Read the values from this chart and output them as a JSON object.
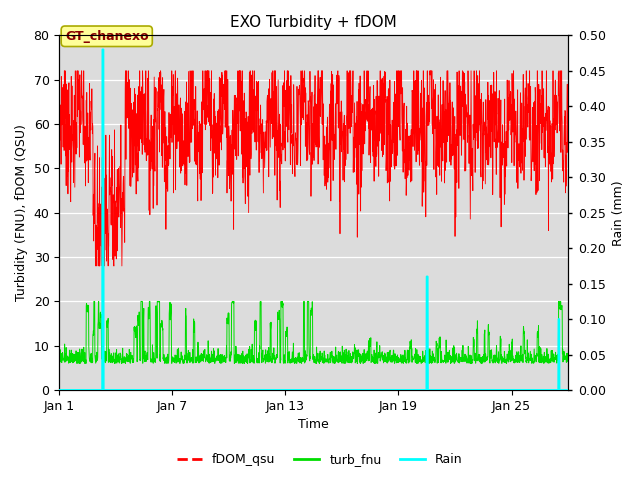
{
  "title": "EXO Turbidity + fDOM",
  "xlabel": "Time",
  "ylabel_left": "Turbidity (FNU), fDOM (QSU)",
  "ylabel_right": "Rain (mm)",
  "ylim_left": [
    0,
    80
  ],
  "ylim_right": [
    0,
    0.5
  ],
  "yticks_left": [
    0,
    10,
    20,
    30,
    40,
    50,
    60,
    70,
    80
  ],
  "yticks_right": [
    0.0,
    0.05,
    0.1,
    0.15,
    0.2,
    0.25,
    0.3,
    0.35,
    0.4,
    0.45,
    0.5
  ],
  "xtick_positions": [
    0,
    6,
    12,
    18,
    24
  ],
  "xtick_labels": [
    "Jan 1",
    "Jan 7",
    "Jan 13",
    "Jan 19",
    "Jan 25"
  ],
  "annotation_text": "GT_chanexo",
  "fdom_color": "#FF0000",
  "turb_color": "#00DD00",
  "rain_color": "#00FFFF",
  "legend_labels": [
    "fDOM_qsu",
    "turb_fnu",
    "Rain"
  ],
  "bg_color": "#DCDCDC",
  "annotation_facecolor": "#FFFF99",
  "annotation_edgecolor": "#AAAA00",
  "annotation_textcolor": "#880000",
  "n_points": 2000,
  "seed": 7
}
